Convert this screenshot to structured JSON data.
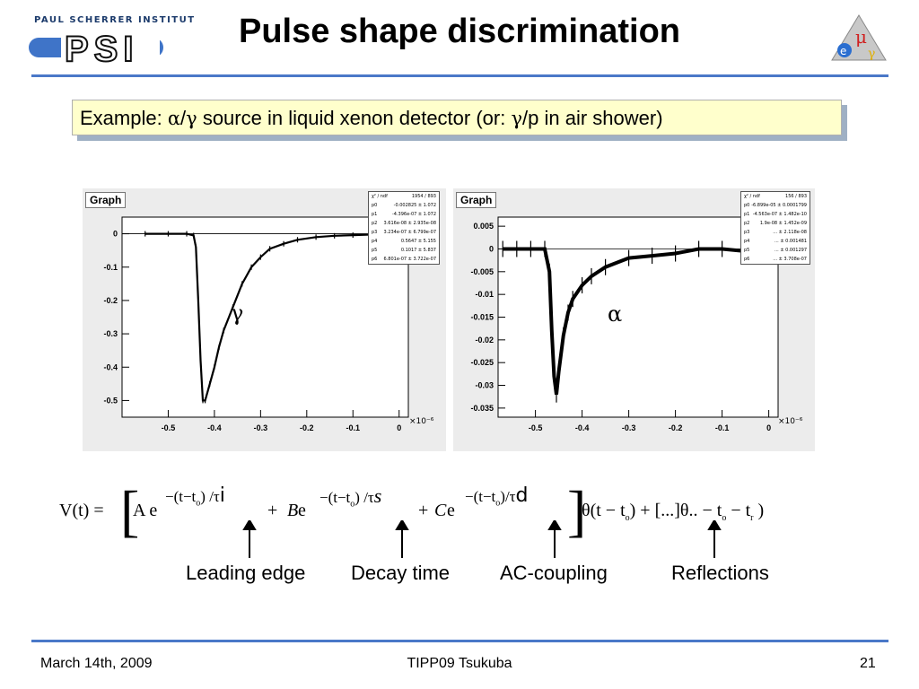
{
  "header": {
    "institute": "PAUL SCHERRER INSTITUT",
    "logo_text": "PSI",
    "title": "Pulse shape discrimination",
    "corner_logo": "mu-e-gamma-logo"
  },
  "example": {
    "text_prefix": "Example: ",
    "alpha": "α",
    "slash1": "/",
    "gamma": "γ",
    "text_middle": " source in liquid xenon detector (or: ",
    "gamma2": "γ",
    "text_suffix": "/p in air shower)"
  },
  "plots": [
    {
      "tag": "Graph",
      "marker": "γ",
      "stats": [
        [
          "χ² / ndf",
          "1954 / 893"
        ],
        [
          "p0",
          "-0.002825 ± 1.072"
        ],
        [
          "p1",
          "-4.396e-07 ± 1.072"
        ],
        [
          "p2",
          "3.616e-08 ± 2.935e-08"
        ],
        [
          "p3",
          "3.234e-07 ± 6.799e-07"
        ],
        [
          "p4",
          "0.5647 ± 5.155"
        ],
        [
          "p5",
          "0.1017 ± 5.837"
        ],
        [
          "p6",
          "6.801e-07 ± 3.722e-07"
        ]
      ],
      "exponent_label": "×10⁻⁶"
    },
    {
      "tag": "Graph",
      "marker": "α",
      "stats": [
        [
          "χ² / ndf",
          "156 / 893"
        ],
        [
          "p0",
          "-6.899e-05 ± 0.0001799"
        ],
        [
          "p1",
          "-4.563e-07 ± 1.482e-10"
        ],
        [
          "p2",
          "1.9e-08 ± 1.452e-09"
        ],
        [
          "p3",
          "... ± 2.118e-08"
        ],
        [
          "p4",
          "... ± 0.001481"
        ],
        [
          "p5",
          "... ± 0.001297"
        ],
        [
          "p6",
          "... ± 3.708e-07"
        ]
      ],
      "exponent_label": "×10⁻⁶"
    }
  ],
  "chart_data": [
    {
      "type": "scatter",
      "title": "Graph",
      "xlabel": "",
      "ylabel": "",
      "xlim": [
        -0.6,
        0.02
      ],
      "ylim": [
        -0.55,
        0.05
      ],
      "x_ticks": [
        "-0.5",
        "-0.4",
        "-0.3",
        "-0.2",
        "-0.1",
        "0"
      ],
      "y_ticks": [
        "0",
        "-0.1",
        "-0.2",
        "-0.3",
        "-0.4",
        "-0.5"
      ],
      "x_tick_values": [
        -0.5,
        -0.4,
        -0.3,
        -0.2,
        -0.1,
        0
      ],
      "y_tick_values": [
        0,
        -0.1,
        -0.2,
        -0.3,
        -0.4,
        -0.5
      ],
      "x_scale_label": "×10⁻⁶",
      "series": [
        {
          "x": [
            -0.55,
            -0.5,
            -0.46,
            -0.445,
            -0.44,
            -0.435,
            -0.43,
            -0.425,
            -0.42,
            -0.41,
            -0.4,
            -0.39,
            -0.38,
            -0.36,
            -0.34,
            -0.32,
            -0.3,
            -0.28,
            -0.25,
            -0.22,
            -0.18,
            -0.14,
            -0.1,
            -0.05,
            0
          ],
          "y": [
            0,
            0,
            0,
            -0.005,
            -0.04,
            -0.2,
            -0.38,
            -0.5,
            -0.5,
            -0.45,
            -0.4,
            -0.34,
            -0.29,
            -0.22,
            -0.15,
            -0.1,
            -0.07,
            -0.045,
            -0.03,
            -0.018,
            -0.01,
            -0.006,
            -0.004,
            -0.002,
            0
          ]
        }
      ],
      "grid": false
    },
    {
      "type": "scatter",
      "title": "Graph",
      "xlabel": "",
      "ylabel": "",
      "xlim": [
        -0.58,
        0.02
      ],
      "ylim": [
        -0.037,
        0.007
      ],
      "x_ticks": [
        "-0.5",
        "-0.4",
        "-0.3",
        "-0.2",
        "-0.1",
        "0"
      ],
      "y_ticks": [
        "0.005",
        "0",
        "-0.005",
        "-0.01",
        "-0.015",
        "-0.02",
        "-0.025",
        "-0.03",
        "-0.035"
      ],
      "x_tick_values": [
        -0.5,
        -0.4,
        -0.3,
        -0.2,
        -0.1,
        0
      ],
      "y_tick_values": [
        0.005,
        0,
        -0.005,
        -0.01,
        -0.015,
        -0.02,
        -0.025,
        -0.03,
        -0.035
      ],
      "x_scale_label": "×10⁻⁶",
      "series": [
        {
          "x": [
            -0.57,
            -0.54,
            -0.51,
            -0.48,
            -0.47,
            -0.465,
            -0.46,
            -0.455,
            -0.45,
            -0.44,
            -0.43,
            -0.42,
            -0.4,
            -0.38,
            -0.35,
            -0.3,
            -0.25,
            -0.2,
            -0.15,
            -0.1,
            -0.05,
            0
          ],
          "y": [
            0,
            0,
            0,
            0,
            -0.005,
            -0.018,
            -0.028,
            -0.032,
            -0.027,
            -0.019,
            -0.014,
            -0.011,
            -0.008,
            -0.006,
            -0.004,
            -0.002,
            -0.0015,
            -0.001,
            0,
            0,
            -0.0005,
            0
          ]
        }
      ],
      "grid": false
    }
  ],
  "formula": {
    "lhs": "V(t) =",
    "term_a": "A e",
    "exp_a": "−(t−t",
    "exp_a_sub": "o",
    "exp_a_end": ") /τ",
    "exp_a_idx": "i",
    "term_b_plus": "+ ",
    "term_b": "B",
    "term_b_e": " e",
    "exp_b": "−(t−t",
    "exp_b_sub": "o",
    "exp_b_end": ") /τ",
    "exp_b_idx": "s",
    "term_c_plus": "+ ",
    "term_c": "C",
    "term_c_e": "e",
    "exp_c": "−(t−t",
    "exp_c_sub": "o",
    "exp_c_end": ")/τ",
    "exp_c_idx": "d",
    "rhs": "θ(t − t",
    "rhs_sub": "o",
    "rhs_mid": ") + [...]θ.. − t",
    "rhs_sub2": "o",
    "rhs_end": " − t",
    "rhs_sub3": "r",
    "rhs_close": " )"
  },
  "annotations": [
    "Leading edge",
    "Decay time",
    "AC-coupling",
    "Reflections"
  ],
  "footer": {
    "date": "March 14th, 2009",
    "event": "TIPP09 Tsukuba",
    "page": "21"
  }
}
